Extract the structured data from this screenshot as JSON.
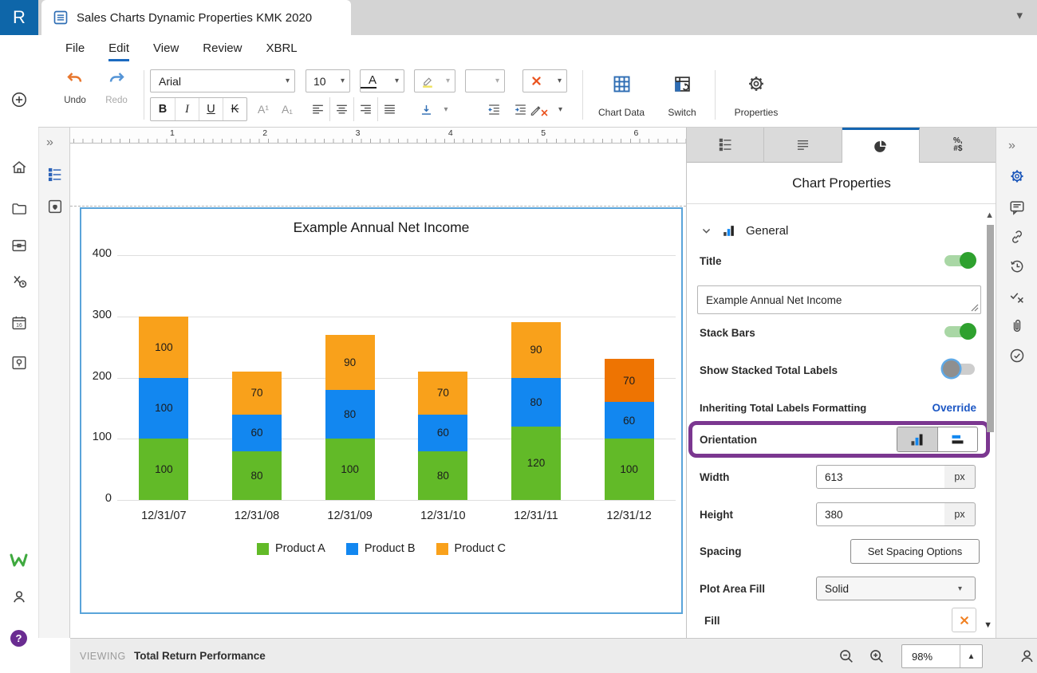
{
  "titlebar": {
    "logo": "R",
    "tab_title": "Sales Charts Dynamic Properties KMK 2020"
  },
  "menu": {
    "items": [
      {
        "label": "File"
      },
      {
        "label": "Edit",
        "active": true
      },
      {
        "label": "View"
      },
      {
        "label": "Review"
      },
      {
        "label": "XBRL"
      }
    ]
  },
  "toolbar": {
    "undo_label": "Undo",
    "redo_label": "Redo",
    "font_family": "Arial",
    "font_size": "10",
    "bold": "B",
    "italic": "I",
    "underline": "U",
    "strikethrough": "K",
    "superscript": "A¹",
    "subscript": "A₁",
    "underline_color": "A",
    "chart_data_label": "Chart Data",
    "switch_label": "Switch",
    "properties_label": "Properties"
  },
  "ruler": {
    "numbers": [
      "1",
      "2",
      "3",
      "4",
      "5",
      "6"
    ]
  },
  "chart_data": {
    "type": "bar",
    "stacked": true,
    "title": "Example Annual Net Income",
    "categories": [
      "12/31/07",
      "12/31/08",
      "12/31/09",
      "12/31/10",
      "12/31/11",
      "12/31/12"
    ],
    "series": [
      {
        "name": "Product A",
        "color": "#62ba28",
        "values": [
          100,
          80,
          100,
          80,
          120,
          100
        ]
      },
      {
        "name": "Product B",
        "color": "#1287f0",
        "values": [
          100,
          60,
          80,
          60,
          80,
          60
        ]
      },
      {
        "name": "Product C",
        "color": "#f9a11b",
        "values": [
          100,
          70,
          90,
          70,
          90,
          70
        ]
      }
    ],
    "highlight": {
      "series": "Product C",
      "category_index": 5,
      "color": "#ee7402"
    },
    "ylim": [
      0,
      400
    ],
    "yticks": [
      0,
      100,
      200,
      300,
      400
    ],
    "grid": true,
    "legend_position": "bottom"
  },
  "panel": {
    "title": "Chart Properties",
    "general_section": "General",
    "tab4_glyph_top": "%,",
    "tab4_glyph_bottom": "#$",
    "title_label": "Title",
    "title_value": "Example Annual Net Income",
    "stack_bars_label": "Stack Bars",
    "show_stacked_total_labels_label": "Show Stacked Total Labels",
    "inheriting_label": "Inheriting Total Labels Formatting",
    "override_label": "Override",
    "orientation_label": "Orientation",
    "width_label": "Width",
    "width_value": "613",
    "width_unit": "px",
    "height_label": "Height",
    "height_value": "380",
    "height_unit": "px",
    "spacing_label": "Spacing",
    "spacing_button_label": "Set Spacing Options",
    "plot_area_fill_label": "Plot Area Fill",
    "plot_area_fill_value": "Solid",
    "fill_label": "Fill"
  },
  "statusbar": {
    "viewing_label": "VIEWING",
    "viewing_value": "Total Return Performance",
    "zoom_value": "98%"
  },
  "colors": {
    "accent_blue": "#1465b0",
    "toggle_on_green": "#2ea12e",
    "highlight_purple": "#7b3790",
    "series_a_green": "#62ba28",
    "series_b_blue": "#1287f0",
    "series_c_orange": "#f9a11b",
    "selected_segment_orange": "#ee7402",
    "logo_blue": "#0e66a9"
  }
}
